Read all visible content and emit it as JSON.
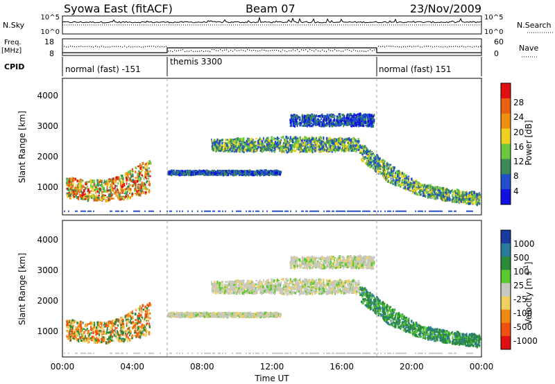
{
  "header": {
    "station": "Syowa East (fitACF)",
    "beam": "Beam 07",
    "date": "23/Nov/2009"
  },
  "top_panel": {
    "left_label": "N.Sky",
    "right_label": "N.Search",
    "left_ticks": [
      "10^5",
      "10^0"
    ],
    "right_ticks": [
      "10^5",
      "10^0"
    ]
  },
  "freq_panel": {
    "left_label_1": "Freq.",
    "left_label_2": "[MHz]",
    "left_ticks": [
      "18",
      "8"
    ],
    "right_label": "Nave",
    "right_ticks": [
      "60",
      "0"
    ]
  },
  "cpid": {
    "label": "CPID",
    "segments": [
      {
        "name": "normal (fast) -151",
        "start_h": 0,
        "end_h": 6
      },
      {
        "name": "themis 3300",
        "start_h": 6,
        "end_h": 18
      },
      {
        "name": "normal (fast) 151",
        "start_h": 18,
        "end_h": 24
      }
    ]
  },
  "axes": {
    "x_label": "Time UT",
    "x_ticks": [
      "00:00",
      "04:00",
      "08:00",
      "12:00",
      "16:00",
      "20:00",
      "00:00"
    ],
    "y_label": "Slant Range [km]",
    "y_ticks": [
      "1000",
      "2000",
      "3000",
      "4000"
    ]
  },
  "power_scale": {
    "label": "Power [dB]",
    "ticks": [
      "4",
      "8",
      "12",
      "16",
      "20",
      "24",
      "28"
    ],
    "colors": [
      "#1010e0",
      "#2050c8",
      "#3a8a5a",
      "#6ac840",
      "#f0d020",
      "#f09010",
      "#e86010",
      "#e01010"
    ]
  },
  "velocity_scale": {
    "label": "Velocity [m s",
    "label_sup": "-1",
    "label_end": "]",
    "ticks": [
      "1000",
      "500",
      "100",
      "25",
      "-25",
      "-100",
      "-500",
      "-1000"
    ],
    "colors": [
      "#1a3aa0",
      "#2a7a9a",
      "#2a8a3a",
      "#5ac830",
      "#c8c8c0",
      "#f0d060",
      "#f08a10",
      "#f05010",
      "#e01010"
    ]
  },
  "chart_data": {
    "type": "heatmap",
    "x_range_hours": [
      0,
      24
    ],
    "y_range_km": [
      180,
      4600
    ],
    "gridlines": false,
    "mode_change_hours": [
      6,
      18
    ],
    "echo_regions": [
      {
        "name": "morning ionospheric echoes",
        "start_h": 0.2,
        "end_h": 5.0,
        "range_lo_km": [
          700,
          650,
          620,
          700,
          900
        ],
        "range_hi_km": [
          1400,
          1300,
          1300,
          1600,
          2000
        ],
        "power_level": "high",
        "velocity": "negative"
      },
      {
        "name": "themis band 1500 km",
        "start_h": 6.0,
        "end_h": 12.5,
        "range_lo_km": [
          1480,
          1480,
          1480
        ],
        "range_hi_km": [
          1600,
          1600,
          1600
        ],
        "power_level": "low",
        "velocity": "near zero"
      },
      {
        "name": "themis band 2400 km",
        "start_h": 8.5,
        "end_h": 17.0,
        "range_lo_km": [
          2250,
          2200,
          2250
        ],
        "range_hi_km": [
          2600,
          2700,
          2650
        ],
        "power_level": "medium",
        "velocity": "near zero"
      },
      {
        "name": "themis band 3200 km",
        "start_h": 13.0,
        "end_h": 17.8,
        "range_lo_km": [
          3050,
          3050
        ],
        "range_hi_km": [
          3400,
          3450
        ],
        "power_level": "low",
        "velocity": "near zero"
      },
      {
        "name": "evening descending echoes",
        "start_h": 17.0,
        "end_h": 23.9,
        "range_lo_km": [
          2000,
          1200,
          800,
          600,
          500
        ],
        "range_hi_km": [
          2500,
          1800,
          1200,
          1000,
          900
        ],
        "power_level": "medium",
        "velocity": "positive"
      }
    ]
  }
}
